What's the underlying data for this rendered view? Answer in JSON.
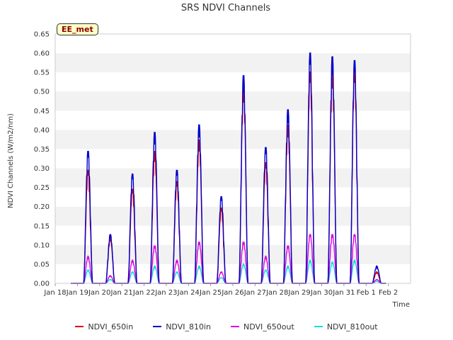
{
  "chart_data": {
    "type": "line",
    "title": "SRS NDVI Channels",
    "xlabel": "Time",
    "ylabel": "NDVI Channels (W/m2/nm)",
    "badge": "EE_met",
    "ylim": [
      0.0,
      0.65
    ],
    "yticks": [
      "0.00",
      "0.05",
      "0.10",
      "0.15",
      "0.20",
      "0.25",
      "0.30",
      "0.35",
      "0.40",
      "0.45",
      "0.50",
      "0.55",
      "0.60",
      "0.65"
    ],
    "xlim_days": [
      0,
      16
    ],
    "xticks": [
      "Jan 18",
      "Jan 19",
      "Jan 20",
      "Jan 21",
      "Jan 22",
      "Jan 23",
      "Jan 24",
      "Jan 25",
      "Jan 26",
      "Jan 27",
      "Jan 28",
      "Jan 29",
      "Jan 30",
      "Jan 31",
      "Feb 1",
      "Feb 2"
    ],
    "grid": "horizontal bands",
    "legend_position": "bottom",
    "daily_peaks": [
      {
        "day": "Jan 19",
        "NDVI_650in": 0.3,
        "NDVI_810in": 0.35,
        "NDVI_650out": 0.07,
        "NDVI_810out": 0.035
      },
      {
        "day": "Jan 20",
        "NDVI_650in": 0.12,
        "NDVI_810in": 0.13,
        "NDVI_650out": 0.02,
        "NDVI_810out": 0.01
      },
      {
        "day": "Jan 21",
        "NDVI_650in": 0.25,
        "NDVI_810in": 0.29,
        "NDVI_650out": 0.06,
        "NDVI_810out": 0.03
      },
      {
        "day": "Jan 22",
        "NDVI_650in": 0.35,
        "NDVI_810in": 0.4,
        "NDVI_650out": 0.1,
        "NDVI_810out": 0.045
      },
      {
        "day": "Jan 23",
        "NDVI_650in": 0.27,
        "NDVI_810in": 0.3,
        "NDVI_650out": 0.06,
        "NDVI_810out": 0.03
      },
      {
        "day": "Jan 24",
        "NDVI_650in": 0.38,
        "NDVI_810in": 0.42,
        "NDVI_650out": 0.11,
        "NDVI_810out": 0.045
      },
      {
        "day": "Jan 25",
        "NDVI_650in": 0.2,
        "NDVI_810in": 0.23,
        "NDVI_650out": 0.03,
        "NDVI_810out": 0.015
      },
      {
        "day": "Jan 26",
        "NDVI_650in": 0.52,
        "NDVI_810in": 0.55,
        "NDVI_650out": 0.11,
        "NDVI_810out": 0.05
      },
      {
        "day": "Jan 27",
        "NDVI_650in": 0.32,
        "NDVI_810in": 0.36,
        "NDVI_650out": 0.07,
        "NDVI_810out": 0.035
      },
      {
        "day": "Jan 28",
        "NDVI_650in": 0.42,
        "NDVI_810in": 0.46,
        "NDVI_650out": 0.1,
        "NDVI_810out": 0.045
      },
      {
        "day": "Jan 29",
        "NDVI_650in": 0.56,
        "NDVI_810in": 0.61,
        "NDVI_650out": 0.13,
        "NDVI_810out": 0.06
      },
      {
        "day": "Jan 30",
        "NDVI_650in": 0.56,
        "NDVI_810in": 0.6,
        "NDVI_650out": 0.13,
        "NDVI_810out": 0.055
      },
      {
        "day": "Jan 31",
        "NDVI_650in": 0.56,
        "NDVI_810in": 0.59,
        "NDVI_650out": 0.13,
        "NDVI_810out": 0.06
      },
      {
        "day": "Feb 1",
        "NDVI_650in": 0.03,
        "NDVI_810in": 0.045,
        "NDVI_650out": 0.01,
        "NDVI_810out": 0.005
      }
    ],
    "series": [
      {
        "name": "NDVI_650in",
        "key": "NDVI_650in",
        "color": "#dd0000"
      },
      {
        "name": "NDVI_810in",
        "key": "NDVI_810in",
        "color": "#0000cc"
      },
      {
        "name": "NDVI_650out",
        "key": "NDVI_650out",
        "color": "#dd00dd"
      },
      {
        "name": "NDVI_810out",
        "key": "NDVI_810out",
        "color": "#00e0e0"
      }
    ]
  }
}
